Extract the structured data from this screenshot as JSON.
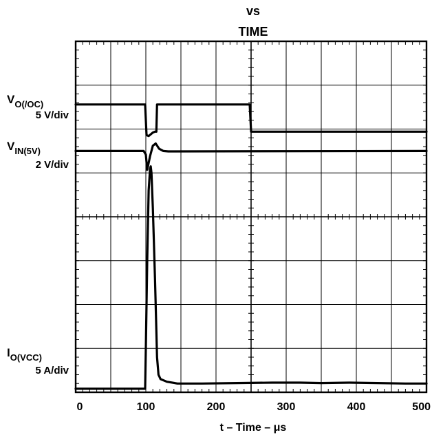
{
  "chart_data": {
    "type": "line",
    "title_lines": [
      "vs",
      "TIME"
    ],
    "xlabel": "t – Time – μs",
    "xlim": [
      0,
      500
    ],
    "x_ticks": [
      "0",
      "100",
      "200",
      "300",
      "400",
      "500"
    ],
    "grid": true,
    "grid_divisions": {
      "x": 10,
      "y": 8
    },
    "series": [
      {
        "label_main": "V",
        "label_sub": "O(/OC)",
        "scale": "5 V/div",
        "points": [
          [
            0,
            6.56
          ],
          [
            99,
            6.56
          ],
          [
            101,
            5.86
          ],
          [
            104,
            5.84
          ],
          [
            110,
            5.92
          ],
          [
            113,
            5.94
          ],
          [
            115,
            5.94
          ],
          [
            116,
            6.56
          ],
          [
            248,
            6.56
          ],
          [
            250,
            5.94
          ],
          [
            500,
            5.94
          ]
        ]
      },
      {
        "label_main": "V",
        "label_sub": "IN(5V)",
        "scale": "2 V/div",
        "points": [
          [
            0,
            5.5
          ],
          [
            97,
            5.5
          ],
          [
            100,
            5.42
          ],
          [
            102,
            5.07
          ],
          [
            106,
            5.38
          ],
          [
            110,
            5.62
          ],
          [
            114,
            5.67
          ],
          [
            119,
            5.55
          ],
          [
            125,
            5.5
          ],
          [
            132,
            5.49
          ],
          [
            500,
            5.5
          ]
        ]
      },
      {
        "label_main": "I",
        "label_sub": "O(VCC)",
        "scale": "5 A/div",
        "points": [
          [
            0,
            0.08
          ],
          [
            99,
            0.08
          ],
          [
            100,
            1.0
          ],
          [
            102,
            3.0
          ],
          [
            104,
            4.6
          ],
          [
            106,
            5.08
          ],
          [
            107,
            5.15
          ],
          [
            108,
            5.0
          ],
          [
            110,
            4.2
          ],
          [
            113,
            2.6
          ],
          [
            116,
            0.8
          ],
          [
            118,
            0.4
          ],
          [
            121,
            0.3
          ],
          [
            130,
            0.24
          ],
          [
            145,
            0.2
          ],
          [
            180,
            0.2
          ],
          [
            230,
            0.21
          ],
          [
            280,
            0.22
          ],
          [
            320,
            0.22
          ],
          [
            350,
            0.21
          ],
          [
            390,
            0.22
          ],
          [
            430,
            0.21
          ],
          [
            470,
            0.2
          ],
          [
            500,
            0.2
          ]
        ]
      }
    ]
  }
}
